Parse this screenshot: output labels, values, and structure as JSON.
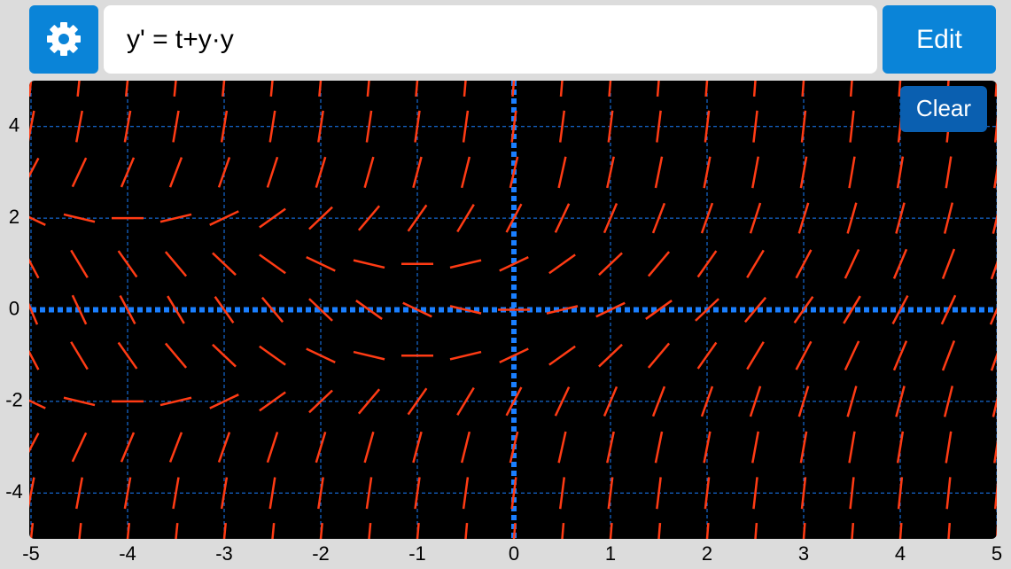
{
  "toolbar": {
    "equation": "y' = t+y·y",
    "edit_button": "Edit"
  },
  "chart_data": {
    "type": "slope_field",
    "clear_button": "Clear",
    "xlim": [
      -5,
      5
    ],
    "ylim": [
      -5,
      5
    ],
    "xticks": [
      -5,
      -4,
      -3,
      -2,
      -1,
      0,
      1,
      2,
      3,
      4,
      5
    ],
    "yticks": [
      -4,
      -2,
      0,
      2,
      4
    ],
    "grid": true,
    "color": "#ff3b14",
    "grid_color": "#1a7fff",
    "x": [
      -5,
      -4.5,
      -4,
      -3.5,
      -3,
      -2.5,
      -2,
      -1.5,
      -1,
      -0.5,
      0,
      0.5,
      1,
      1.5,
      2,
      2.5,
      3,
      3.5,
      4,
      4.5,
      5
    ],
    "rows": [
      {
        "y": 5,
        "slopes": [
          20,
          20.5,
          21,
          21.5,
          22,
          22.5,
          23,
          23.5,
          24,
          24.5,
          25,
          25.5,
          26,
          26.5,
          27,
          27.5,
          28,
          28.5,
          29,
          29.5,
          30
        ]
      },
      {
        "y": 4,
        "slopes": [
          11,
          11.5,
          12,
          12.5,
          13,
          13.5,
          14,
          14.5,
          15,
          15.5,
          16,
          16.5,
          17,
          17.5,
          18,
          18.5,
          19,
          19.5,
          20,
          20.5,
          21
        ]
      },
      {
        "y": 3,
        "slopes": [
          4,
          4.5,
          5,
          5.5,
          6,
          6.5,
          7,
          7.5,
          8,
          8.5,
          9,
          9.5,
          10,
          10.5,
          11,
          11.5,
          12,
          12.5,
          13,
          13.5,
          14
        ]
      },
      {
        "y": 2,
        "slopes": [
          -1,
          -0.5,
          0,
          0.5,
          1,
          1.5,
          2,
          2.5,
          3,
          3.5,
          4,
          4.5,
          5,
          5.5,
          6,
          6.5,
          7,
          7.5,
          8,
          8.5,
          9
        ]
      },
      {
        "y": 1,
        "slopes": [
          -4,
          -3.5,
          -3,
          -2.5,
          -2,
          -1.5,
          -1,
          -0.5,
          0,
          0.5,
          1,
          1.5,
          2,
          2.5,
          3,
          3.5,
          4,
          4.5,
          5,
          5.5,
          6
        ]
      },
      {
        "y": 0,
        "slopes": [
          -5,
          -4.5,
          -4,
          -3.5,
          -3,
          -2.5,
          -2,
          -1.5,
          -1,
          -0.5,
          0,
          0.5,
          1,
          1.5,
          2,
          2.5,
          3,
          3.5,
          4,
          4.5,
          5
        ]
      },
      {
        "y": -1,
        "slopes": [
          -4,
          -3.5,
          -3,
          -2.5,
          -2,
          -1.5,
          -1,
          -0.5,
          0,
          0.5,
          1,
          1.5,
          2,
          2.5,
          3,
          3.5,
          4,
          4.5,
          5,
          5.5,
          6
        ]
      },
      {
        "y": -2,
        "slopes": [
          -1,
          -0.5,
          0,
          0.5,
          1,
          1.5,
          2,
          2.5,
          3,
          3.5,
          4,
          4.5,
          5,
          5.5,
          6,
          6.5,
          7,
          7.5,
          8,
          8.5,
          9
        ]
      },
      {
        "y": -3,
        "slopes": [
          4,
          4.5,
          5,
          5.5,
          6,
          6.5,
          7,
          7.5,
          8,
          8.5,
          9,
          9.5,
          10,
          10.5,
          11,
          11.5,
          12,
          12.5,
          13,
          13.5,
          14
        ]
      },
      {
        "y": -4,
        "slopes": [
          11,
          11.5,
          12,
          12.5,
          13,
          13.5,
          14,
          14.5,
          15,
          15.5,
          16,
          16.5,
          17,
          17.5,
          18,
          18.5,
          19,
          19.5,
          20,
          20.5,
          21
        ]
      },
      {
        "y": -5,
        "slopes": [
          20,
          20.5,
          21,
          21.5,
          22,
          22.5,
          23,
          23.5,
          24,
          24.5,
          25,
          25.5,
          26,
          26.5,
          27,
          27.5,
          28,
          28.5,
          29,
          29.5,
          30
        ]
      }
    ]
  }
}
